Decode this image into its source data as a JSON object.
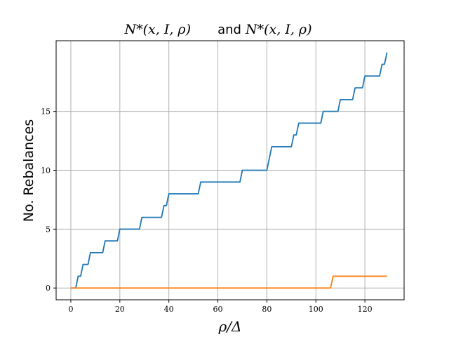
{
  "chart_data": {
    "type": "line",
    "title": {
      "part1": "N*(x, I, ρ)",
      "connector": "and",
      "part2": "N*(x, I, ρ)"
    },
    "xlabel": "ρ/Δ",
    "ylabel": "No. Rebalances",
    "xlim": [
      -6,
      136
    ],
    "ylim": [
      -1,
      21
    ],
    "x_ticks": [
      0,
      20,
      40,
      60,
      80,
      100,
      120
    ],
    "y_ticks": [
      0,
      5,
      10,
      15
    ],
    "grid": true,
    "series": [
      {
        "color": "#1f77b4",
        "points": [
          [
            0,
            0
          ],
          [
            2,
            0
          ],
          [
            3,
            1
          ],
          [
            4,
            1
          ],
          [
            5,
            2
          ],
          [
            7,
            2
          ],
          [
            8,
            3
          ],
          [
            13,
            3
          ],
          [
            14,
            4
          ],
          [
            19,
            4
          ],
          [
            20,
            5
          ],
          [
            28,
            5
          ],
          [
            29,
            6
          ],
          [
            37,
            6
          ],
          [
            38,
            7
          ],
          [
            39,
            7
          ],
          [
            40,
            8
          ],
          [
            52,
            8
          ],
          [
            53,
            9
          ],
          [
            69,
            9
          ],
          [
            70,
            10
          ],
          [
            80,
            10
          ],
          [
            82,
            12
          ],
          [
            90,
            12
          ],
          [
            91,
            13
          ],
          [
            92,
            13
          ],
          [
            93,
            14
          ],
          [
            102,
            14
          ],
          [
            103,
            15
          ],
          [
            109,
            15
          ],
          [
            110,
            16
          ],
          [
            115,
            16
          ],
          [
            116,
            17
          ],
          [
            119,
            17
          ],
          [
            120,
            18
          ],
          [
            126,
            18
          ],
          [
            127,
            19
          ],
          [
            128,
            19
          ],
          [
            129,
            20
          ]
        ]
      },
      {
        "color": "#ff7f0e",
        "points": [
          [
            0,
            0
          ],
          [
            106,
            0
          ],
          [
            107,
            1
          ],
          [
            129,
            1
          ]
        ]
      }
    ]
  }
}
